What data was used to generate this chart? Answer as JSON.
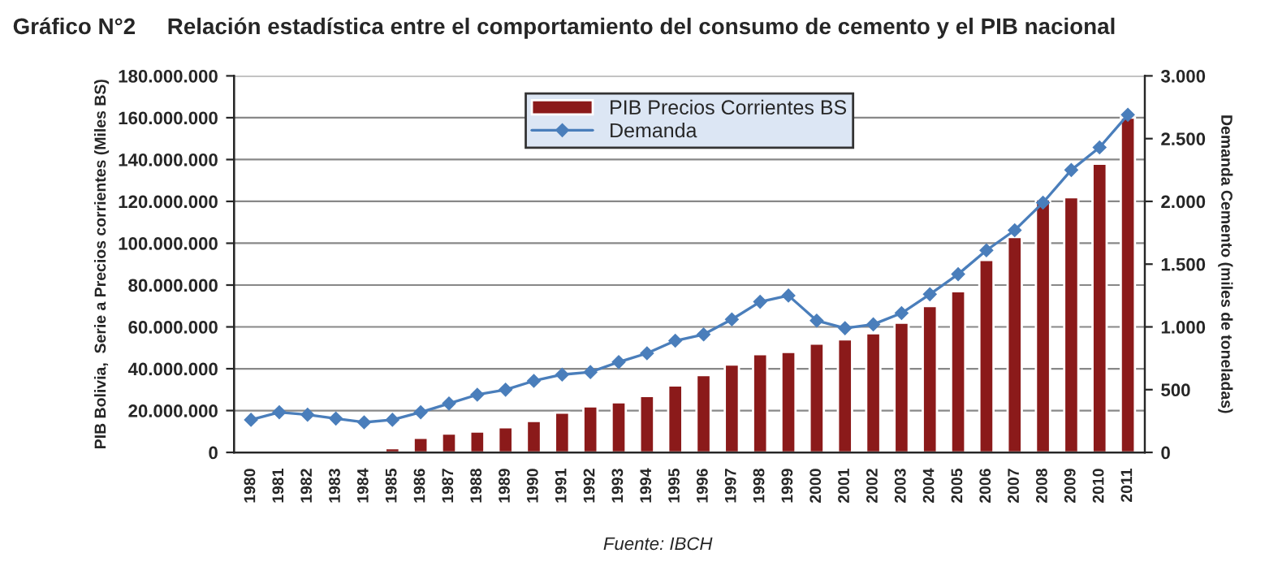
{
  "chart_data": {
    "type": "bar",
    "title": "Gráfico N°2     Relación estadística entre el comportamiento del consumo de cemento y el PIB nacional",
    "ylabel": "PIB Bolivia,  Serie a Precios corrientes (Miles BS)",
    "y2label": "Demanda Cemento (miles de toneladas)",
    "annotations": [
      "Fuente: IBCH"
    ],
    "categories": [
      "1980",
      "1981",
      "1982",
      "1983",
      "1984",
      "1985",
      "1986",
      "1987",
      "1988",
      "1989",
      "1990",
      "1991",
      "1992",
      "1993",
      "1994",
      "1995",
      "1996",
      "1997",
      "1998",
      "1999",
      "2000",
      "2001",
      "2002",
      "2003",
      "2004",
      "2005",
      "2006",
      "2007",
      "2008",
      "2009",
      "2010",
      "2011"
    ],
    "series": [
      {
        "name": "PIB Precios Corrientes BS",
        "color": "#8b1a1a",
        "values": [
          null,
          null,
          null,
          null,
          null,
          2000000,
          7000000,
          9000000,
          10000000,
          12000000,
          15000000,
          19000000,
          22000000,
          24000000,
          27000000,
          32000000,
          37000000,
          42000000,
          47000000,
          48000000,
          52000000,
          54000000,
          57000000,
          62000000,
          70000000,
          77000000,
          92000000,
          103000000,
          121000000,
          122000000,
          138000000,
          160000000
        ]
      },
      {
        "name": "Demanda",
        "type": "line",
        "axis": "y2",
        "color": "#4a7ebb",
        "marker": "diamond",
        "values": [
          260,
          320,
          300,
          270,
          240,
          260,
          320,
          390,
          460,
          500,
          570,
          620,
          640,
          720,
          790,
          890,
          940,
          1060,
          1200,
          1250,
          1050,
          990,
          1020,
          1110,
          1260,
          1420,
          1610,
          1770,
          1990,
          2250,
          2430,
          2690
        ]
      }
    ],
    "ylim": [
      0,
      180000000
    ],
    "yticks": [
      {
        "value": 0,
        "label": "0"
      },
      {
        "value": 20000000,
        "label": "20.000.000"
      },
      {
        "value": 40000000,
        "label": "40.000.000"
      },
      {
        "value": 60000000,
        "label": "60.000.000"
      },
      {
        "value": 80000000,
        "label": "80.000.000"
      },
      {
        "value": 100000000,
        "label": "100.000.000"
      },
      {
        "value": 120000000,
        "label": "120.000.000"
      },
      {
        "value": 140000000,
        "label": "140.000.000"
      },
      {
        "value": 160000000,
        "label": "160.000.000"
      },
      {
        "value": 180000000,
        "label": "180.000.000"
      }
    ],
    "y2lim": [
      0,
      3000
    ],
    "y2ticks": [
      0,
      {
        "value": 500,
        "label": "500"
      },
      {
        "value": 1000,
        "label": "1.000"
      },
      {
        "value": 1500,
        "label": "1.500"
      },
      {
        "value": 2000,
        "label": "2.000"
      },
      {
        "value": 2500,
        "label": "2.500"
      },
      {
        "value": 3000,
        "label": "3.000"
      }
    ],
    "grid": "y",
    "legend": "top"
  }
}
